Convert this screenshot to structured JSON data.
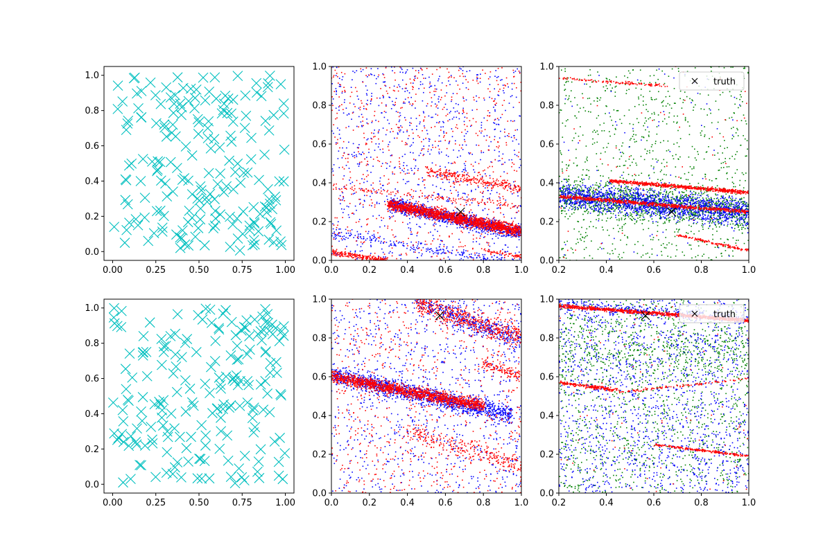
{
  "chart_data": [
    {
      "id": "top-left",
      "type": "scatter",
      "xlim": [
        -0.05,
        1.05
      ],
      "ylim": [
        -0.05,
        1.05
      ],
      "xticks": [
        0,
        0.25,
        0.5,
        0.75,
        1
      ],
      "yticks": [
        0,
        0.2,
        0.4,
        0.6,
        0.8,
        1
      ],
      "xtick_labels": [
        "0.00",
        "0.25",
        "0.50",
        "0.75",
        "1.00"
      ],
      "ytick_labels": [
        "0.0",
        "0.2",
        "0.4",
        "0.6",
        "0.8",
        "1.0"
      ],
      "series": [
        {
          "color": "#00bfbf",
          "marker": "x",
          "count": 200,
          "distribution": "uniform"
        }
      ],
      "legend": null
    },
    {
      "id": "top-middle",
      "type": "scatter",
      "xlim": [
        0,
        1
      ],
      "ylim": [
        0,
        1
      ],
      "xticks": [
        0,
        0.2,
        0.4,
        0.6,
        0.8,
        1
      ],
      "yticks": [
        0,
        0.2,
        0.4,
        0.6,
        0.8,
        1
      ],
      "xtick_labels": [
        "0.0",
        "0.2",
        "0.4",
        "0.6",
        "0.8",
        "1.0"
      ],
      "ytick_labels": [
        "0.0",
        "0.2",
        "0.4",
        "0.6",
        "0.8",
        "1.0"
      ],
      "series": [
        {
          "color": "#0000ff",
          "marker": "dot",
          "background_count": 900,
          "bands": [
            {
              "x": [
                0.3,
                1.0
              ],
              "y": [
                0.29,
                0.14
              ],
              "width": 0.03,
              "count": 1200
            },
            {
              "x": [
                0.0,
                1.0
              ],
              "y": [
                0.14,
                -0.02
              ],
              "width": 0.02,
              "count": 200
            }
          ]
        },
        {
          "color": "#ff0000",
          "marker": "dot",
          "background_count": 700,
          "bands": [
            {
              "x": [
                0.3,
                1.0
              ],
              "y": [
                0.29,
                0.15
              ],
              "width": 0.025,
              "count": 1600
            },
            {
              "x": [
                0.0,
                1.0
              ],
              "y": [
                0.38,
                0.28
              ],
              "width": 0.012,
              "count": 120
            },
            {
              "x": [
                0.5,
                1.0
              ],
              "y": [
                0.46,
                0.37
              ],
              "width": 0.02,
              "count": 250
            },
            {
              "x": [
                0.0,
                0.3
              ],
              "y": [
                0.04,
                0.0
              ],
              "width": 0.012,
              "count": 200
            },
            {
              "x": [
                0.8,
                1.0
              ],
              "y": [
                0.05,
                0.02
              ],
              "width": 0.01,
              "count": 60
            }
          ]
        }
      ],
      "truth": {
        "x": 0.68,
        "y": 0.25
      },
      "legend": null
    },
    {
      "id": "top-right",
      "type": "scatter",
      "xlim": [
        0.2,
        1
      ],
      "ylim": [
        0,
        1
      ],
      "xticks": [
        0.2,
        0.4,
        0.6,
        0.8,
        1
      ],
      "yticks": [
        0,
        0.2,
        0.4,
        0.6,
        0.8,
        1
      ],
      "xtick_labels": [
        "0.2",
        "0.4",
        "0.6",
        "0.8",
        "1.0"
      ],
      "ytick_labels": [
        "0.0",
        "0.2",
        "0.4",
        "0.6",
        "0.8",
        "1.0"
      ],
      "series": [
        {
          "color": "#008000",
          "marker": "dot",
          "background_count": 900,
          "bands": [
            {
              "x": [
                0.2,
                1.0
              ],
              "y": [
                0.33,
                0.25
              ],
              "width": 0.08,
              "count": 1200
            }
          ]
        },
        {
          "color": "#0000ff",
          "marker": "dot",
          "background_count": 80,
          "bands": [
            {
              "x": [
                0.2,
                1.0
              ],
              "y": [
                0.34,
                0.24
              ],
              "width": 0.06,
              "count": 1600
            }
          ]
        },
        {
          "color": "#ff0000",
          "marker": "dot",
          "background_count": 60,
          "bands": [
            {
              "x": [
                0.2,
                1.0
              ],
              "y": [
                0.33,
                0.25
              ],
              "width": 0.008,
              "count": 700
            },
            {
              "x": [
                0.42,
                1.0
              ],
              "y": [
                0.41,
                0.35
              ],
              "width": 0.008,
              "count": 650
            },
            {
              "x": [
                0.2,
                0.65
              ],
              "y": [
                0.94,
                0.9
              ],
              "width": 0.006,
              "count": 120
            },
            {
              "x": [
                0.7,
                1.0
              ],
              "y": [
                0.13,
                0.05
              ],
              "width": 0.006,
              "count": 140
            }
          ]
        }
      ],
      "truth": {
        "x": 0.675,
        "y": 0.25
      },
      "legend": {
        "position": "top-right",
        "label": "truth",
        "marker": "x"
      }
    },
    {
      "id": "bottom-left",
      "type": "scatter",
      "xlim": [
        -0.05,
        1.05
      ],
      "ylim": [
        -0.05,
        1.05
      ],
      "xticks": [
        0,
        0.25,
        0.5,
        0.75,
        1
      ],
      "yticks": [
        0,
        0.2,
        0.4,
        0.6,
        0.8,
        1
      ],
      "xtick_labels": [
        "0.00",
        "0.25",
        "0.50",
        "0.75",
        "1.00"
      ],
      "ytick_labels": [
        "0.0",
        "0.2",
        "0.4",
        "0.6",
        "0.8",
        "1.0"
      ],
      "series": [
        {
          "color": "#00bfbf",
          "marker": "x",
          "count": 200,
          "distribution": "uniform"
        }
      ],
      "legend": null
    },
    {
      "id": "bottom-middle",
      "type": "scatter",
      "xlim": [
        0,
        1
      ],
      "ylim": [
        0,
        1
      ],
      "xticks": [
        0,
        0.2,
        0.4,
        0.6,
        0.8,
        1
      ],
      "yticks": [
        0,
        0.2,
        0.4,
        0.6,
        0.8,
        1
      ],
      "xtick_labels": [
        "0.0",
        "0.2",
        "0.4",
        "0.6",
        "0.8",
        "1.0"
      ],
      "ytick_labels": [
        "0.0",
        "0.2",
        "0.4",
        "0.6",
        "0.8",
        "1.0"
      ],
      "series": [
        {
          "color": "#0000ff",
          "marker": "dot",
          "background_count": 900,
          "bands": [
            {
              "x": [
                0.0,
                0.95
              ],
              "y": [
                0.61,
                0.4
              ],
              "width": 0.04,
              "count": 1300
            },
            {
              "x": [
                0.45,
                1.0
              ],
              "y": [
                0.99,
                0.78
              ],
              "width": 0.05,
              "count": 400
            }
          ]
        },
        {
          "color": "#ff0000",
          "marker": "dot",
          "background_count": 700,
          "bands": [
            {
              "x": [
                0.0,
                0.8
              ],
              "y": [
                0.6,
                0.45
              ],
              "width": 0.025,
              "count": 1400
            },
            {
              "x": [
                0.45,
                1.0
              ],
              "y": [
                0.98,
                0.8
              ],
              "width": 0.05,
              "count": 500
            },
            {
              "x": [
                0.8,
                1.0
              ],
              "y": [
                0.67,
                0.6
              ],
              "width": 0.03,
              "count": 120
            },
            {
              "x": [
                0.4,
                1.0
              ],
              "y": [
                0.32,
                0.14
              ],
              "width": 0.04,
              "count": 250
            }
          ]
        }
      ],
      "truth": {
        "x": 0.57,
        "y": 0.915
      },
      "legend": null
    },
    {
      "id": "bottom-right",
      "type": "scatter",
      "xlim": [
        0.2,
        1
      ],
      "ylim": [
        0,
        1
      ],
      "xticks": [
        0.2,
        0.4,
        0.6,
        0.8,
        1
      ],
      "yticks": [
        0,
        0.2,
        0.4,
        0.6,
        0.8,
        1
      ],
      "xtick_labels": [
        "0.2",
        "0.4",
        "0.6",
        "0.8",
        "1.0"
      ],
      "ytick_labels": [
        "0.0",
        "0.2",
        "0.4",
        "0.6",
        "0.8",
        "1.0"
      ],
      "series": [
        {
          "color": "#008000",
          "marker": "dot",
          "background_count": 1200,
          "bands": [
            {
              "x": [
                0.2,
                1.0
              ],
              "y": [
                0.75,
                0.72
              ],
              "width": 0.15,
              "count": 400
            }
          ]
        },
        {
          "color": "#0000ff",
          "marker": "dot",
          "background_count": 1500,
          "bands": [
            {
              "x": [
                0.2,
                1.0
              ],
              "y": [
                0.97,
                0.9
              ],
              "width": 0.02,
              "count": 300
            }
          ]
        },
        {
          "color": "#ff0000",
          "marker": "dot",
          "background_count": 80,
          "bands": [
            {
              "x": [
                0.2,
                1.0
              ],
              "y": [
                0.965,
                0.89
              ],
              "width": 0.008,
              "count": 900
            },
            {
              "x": [
                0.2,
                0.45
              ],
              "y": [
                0.57,
                0.53
              ],
              "width": 0.008,
              "count": 200
            },
            {
              "x": [
                0.45,
                1.0
              ],
              "y": [
                0.52,
                0.59
              ],
              "width": 0.005,
              "count": 100
            },
            {
              "x": [
                0.6,
                1.0
              ],
              "y": [
                0.25,
                0.19
              ],
              "width": 0.005,
              "count": 200
            }
          ]
        }
      ],
      "truth": {
        "x": 0.565,
        "y": 0.915
      },
      "legend": {
        "position": "top-right",
        "label": "truth",
        "marker": "x"
      }
    }
  ]
}
